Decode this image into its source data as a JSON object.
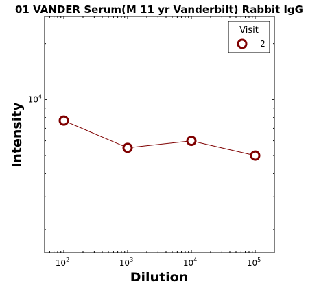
{
  "chart_data": {
    "type": "line",
    "title": "01 VANDER Serum(M 11 yr Vanderbilt) Rabbit IgG",
    "xlabel": "Dilution",
    "ylabel": "Intensity",
    "x_scale": "log",
    "y_scale": "log",
    "xlim": [
      50,
      200000
    ],
    "ylim": [
      1500,
      28000
    ],
    "x_ticks": [
      {
        "value": 100,
        "base": "10",
        "exp": "2"
      },
      {
        "value": 1000,
        "base": "10",
        "exp": "3"
      },
      {
        "value": 10000,
        "base": "10",
        "exp": "4"
      },
      {
        "value": 100000,
        "base": "10",
        "exp": "5"
      }
    ],
    "y_ticks": [
      {
        "value": 10000,
        "base": "10",
        "exp": "4"
      }
    ],
    "legend": {
      "title": "Visit",
      "placement": "top-right"
    },
    "series": [
      {
        "name": "2",
        "color": "#7f0000",
        "marker": "open-circle",
        "x": [
          100,
          1000,
          10000,
          100000
        ],
        "y": [
          7700,
          5500,
          6000,
          5000
        ]
      }
    ]
  }
}
